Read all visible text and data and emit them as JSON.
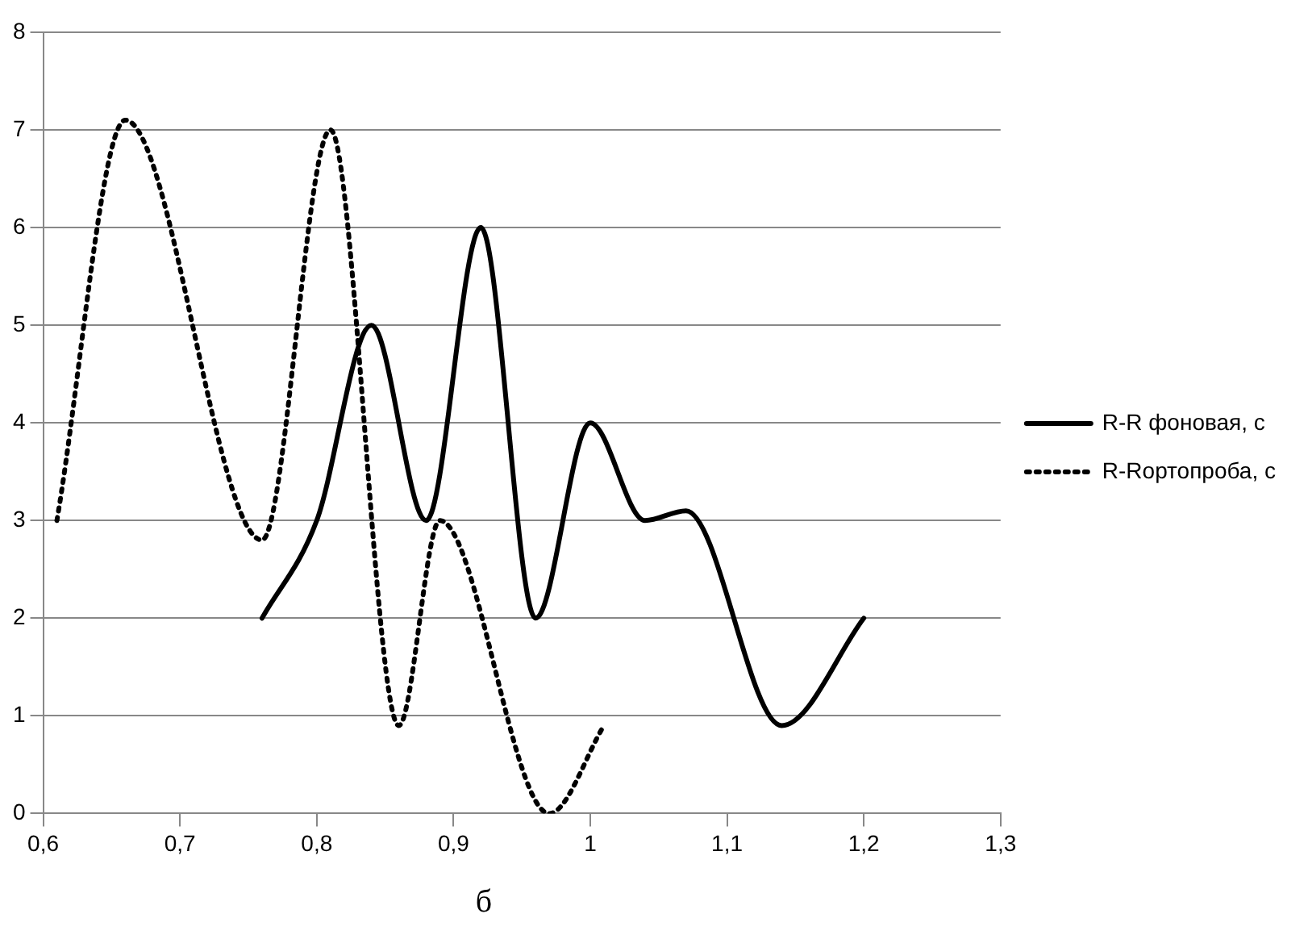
{
  "chart_data": {
    "type": "line",
    "xlim": [
      0.6,
      1.3
    ],
    "xticks": [
      {
        "value": 0.6,
        "label": "0,6"
      },
      {
        "value": 0.7,
        "label": "0,7"
      },
      {
        "value": 0.8,
        "label": "0,8"
      },
      {
        "value": 0.9,
        "label": "0,9"
      },
      {
        "value": 1,
        "label": "1"
      },
      {
        "value": 1.1,
        "label": "1,1"
      },
      {
        "value": 1.2,
        "label": "1,2"
      },
      {
        "value": 1.3,
        "label": "1,3"
      }
    ],
    "ylim": [
      0,
      8
    ],
    "yticks": [
      0,
      1,
      2,
      3,
      4,
      5,
      6,
      7,
      8
    ],
    "grid": "y",
    "legend": "right",
    "marker": "none",
    "series": [
      {
        "name": "R-R фоновая, с",
        "color": "#000000",
        "line_style": "solid",
        "x": [
          0.76,
          0.8,
          0.84,
          0.88,
          0.92,
          0.96,
          1.0,
          1.04,
          1.07,
          1.14,
          1.2
        ],
        "values": [
          2,
          3,
          5,
          3,
          6,
          2,
          4,
          3,
          3.1,
          0.9,
          2
        ]
      },
      {
        "name": "R-Rортопроба, с",
        "color": "#000000",
        "line_style": "dotted",
        "x": [
          0.61,
          0.66,
          0.76,
          0.81,
          0.86,
          0.89,
          0.97,
          1.01
        ],
        "values": [
          3,
          7.1,
          2.8,
          7,
          0.9,
          3,
          0,
          0.9
        ]
      }
    ],
    "annotations": [
      "б"
    ]
  }
}
